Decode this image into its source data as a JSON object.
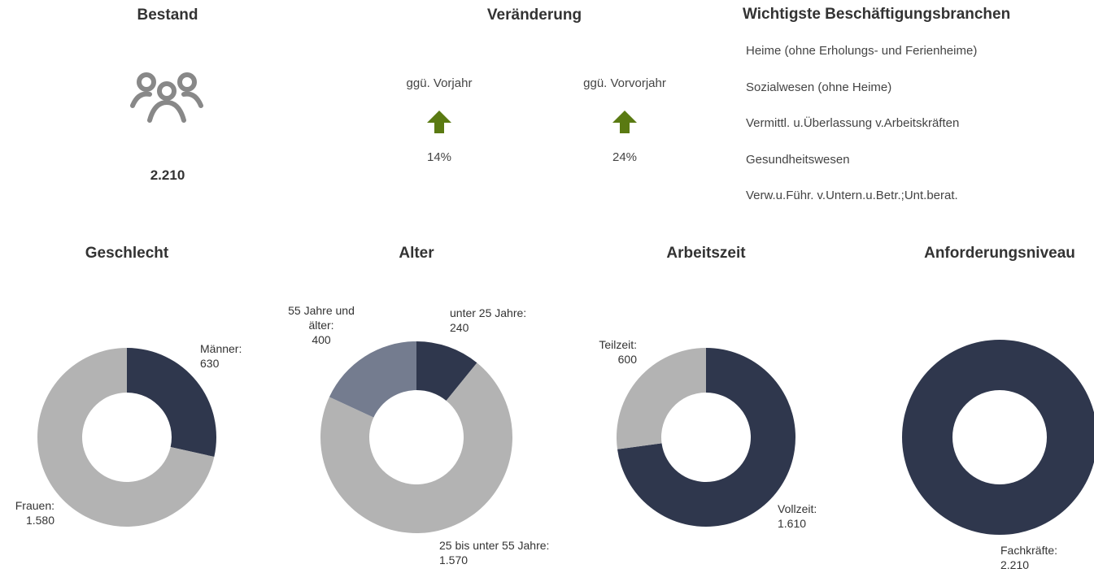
{
  "bestand": {
    "title": "Bestand",
    "value": "2.210"
  },
  "veraenderung": {
    "title": "Veränderung",
    "items": [
      {
        "label": "ggü. Vorjahr",
        "value": "14%"
      },
      {
        "label": "ggü. Vorvorjahr",
        "value": "24%"
      }
    ]
  },
  "branchen": {
    "title": "Wichtigste Beschäftigungsbranchen",
    "items": [
      "Heime (ohne Erholungs- und Ferienheime)",
      "Sozialwesen (ohne Heime)",
      "Vermittl. u.Überlassung v.Arbeitskräften",
      "Gesundheitswesen",
      "Verw.u.Führ. v.Untern.u.Betr.;Unt.berat."
    ]
  },
  "chart_data": [
    {
      "type": "donut",
      "title": "Geschlecht",
      "categories": [
        "Männer:",
        "Frauen:"
      ],
      "values": [
        630,
        1580
      ],
      "value_labels": [
        "630",
        "1.580"
      ],
      "colors": [
        "#2f374d",
        "#b3b3b3"
      ]
    },
    {
      "type": "donut",
      "title": "Alter",
      "categories": [
        "unter 25 Jahre:",
        "25 bis unter 55 Jahre:",
        "55 Jahre und älter:"
      ],
      "values": [
        240,
        1570,
        400
      ],
      "value_labels": [
        "240",
        "1.570",
        "400"
      ],
      "colors": [
        "#2f374d",
        "#b3b3b3",
        "#747c8f"
      ]
    },
    {
      "type": "donut",
      "title": "Arbeitszeit",
      "categories": [
        "Vollzeit:",
        "Teilzeit:"
      ],
      "values": [
        1610,
        600
      ],
      "value_labels": [
        "1.610",
        "600"
      ],
      "colors": [
        "#2f374d",
        "#b3b3b3"
      ]
    },
    {
      "type": "donut",
      "title": "Anforderungsniveau",
      "categories": [
        "Fachkräfte:"
      ],
      "values": [
        2210
      ],
      "value_labels": [
        "2.210"
      ],
      "colors": [
        "#2f374d"
      ]
    }
  ]
}
